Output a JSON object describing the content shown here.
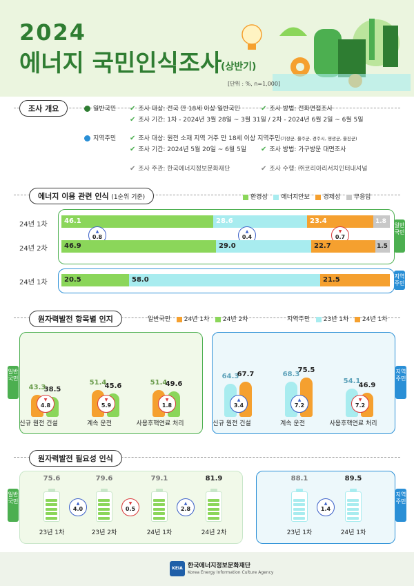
{
  "header": {
    "year": "2024",
    "title": "에너지 국민인식조사",
    "subtitle": "(상반기)",
    "unit": "[단위 : %, n=1,000]"
  },
  "overview": {
    "label": "조사 개요",
    "general": {
      "name": "일반국민",
      "target": "조사 대상: 전국 만 18세 이상 일반국민",
      "method": "조사 방법: 전화면접조사",
      "period": "조사 기간: 1차 - 2024년 3월 28일 ~ 3월 31일 / 2차 - 2024년 6월 2일 ~ 6월 5일"
    },
    "local": {
      "name": "지역주민",
      "target": "조사 대상: 원전 소재 지역 거주 만 18세 이상 지역주민",
      "target_note": "(기장군, 울주군, 경주시, 영광군, 울진군)",
      "period": "조사 기간: 2024년 5월 20일 ~ 6월 5일",
      "method": "조사 방법: 가구방문 대면조사"
    },
    "host": "조사 주관: 한국에너지정보문화재단",
    "executor": "조사 수행: ㈜코리아리서치인터내셔널"
  },
  "energy": {
    "label": "에너지 이용 관련 인식",
    "label_note": "(1순위 기준)",
    "legend": [
      "환경성",
      "에너지안보",
      "경제성",
      "무응답"
    ],
    "colors": {
      "env": "#8bd65a",
      "sec": "#a8ecef",
      "eco": "#f5a02f",
      "none": "#c8c8c8",
      "up": "#3a5fc8",
      "down": "#d9383a"
    },
    "rows": [
      {
        "label": "24년 1차",
        "values": [
          "46.1",
          "28.6",
          "23.4",
          "1.8"
        ]
      },
      {
        "label": "24년 2차",
        "values": [
          "46.9",
          "29.0",
          "22.7",
          "1.5"
        ]
      }
    ],
    "changes": [
      {
        "value": "0.8",
        "dir": "up"
      },
      {
        "value": "0.4",
        "dir": "up"
      },
      {
        "value": "0.7",
        "dir": "down"
      }
    ],
    "general_tag": "일반 국민",
    "local_row": {
      "label": "24년 1차",
      "values": [
        "20.5",
        "58.0",
        "21.5"
      ]
    },
    "local_tag": "지역 주민"
  },
  "nuclear_items": {
    "label": "원자력발전 항목별 인지",
    "general_legend": {
      "group": "일반국민",
      "a": "24년 1차",
      "b": "24년 2차"
    },
    "local_legend": {
      "group": "지역주민",
      "a": "23년 1차",
      "b": "24년 1차"
    },
    "general_tag": "일반 국민",
    "local_tag": "지역 주민",
    "categories": [
      "신규 원전 건설",
      "계속 운전",
      "사용후핵연료 처리"
    ],
    "general": {
      "a": [
        "43.3",
        "51.4",
        "51.4"
      ],
      "b": [
        "38.5",
        "45.6",
        "49.6"
      ],
      "changes": [
        {
          "value": "4.8",
          "dir": "down"
        },
        {
          "value": "5.9",
          "dir": "down"
        },
        {
          "value": "1.8",
          "dir": "down"
        }
      ]
    },
    "local": {
      "a": [
        "64.3",
        "68.3",
        "54.1"
      ],
      "b": [
        "67.7",
        "75.5",
        "46.9"
      ],
      "changes": [
        {
          "value": "3.4",
          "dir": "up"
        },
        {
          "value": "7.2",
          "dir": "up"
        },
        {
          "value": "7.2",
          "dir": "down"
        }
      ]
    }
  },
  "necessity": {
    "label": "원자력발전 필요성 인식",
    "general_tag": "일반 국민",
    "local_tag": "지역 주민",
    "general": {
      "labels": [
        "23년 1차",
        "23년 2차",
        "24년 1차",
        "24년 2차"
      ],
      "values": [
        "75.6",
        "79.6",
        "79.1",
        "81.9"
      ],
      "changes": [
        {
          "value": "4.0",
          "dir": "up"
        },
        {
          "value": "0.5",
          "dir": "down"
        },
        {
          "value": "2.8",
          "dir": "up"
        }
      ]
    },
    "local": {
      "labels": [
        "23년 1차",
        "24년 1차"
      ],
      "values": [
        "88.1",
        "89.5"
      ],
      "changes": [
        {
          "value": "1.4",
          "dir": "up"
        }
      ]
    }
  },
  "footer": {
    "logo": "KEIA",
    "org": "한국에너지정보문화재단",
    "org_en": "Korea Energy Information Culture Agency"
  }
}
